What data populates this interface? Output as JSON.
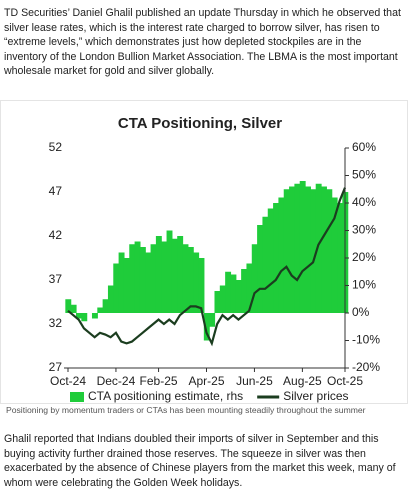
{
  "article": {
    "paragraphs": [
      "TD Securities’ Daniel Ghalil published an update Thursday in which he observed that silver lease rates, which is the interest rate charged to borrow silver, has risen to “extreme levels,” which demonstrates just how depleted stockpiles are in the inventory of the London Bullion Market Association. The LBMA is the most important wholesale market for gold and silver globally.",
      "Ghalil reported that Indians doubled their imports of silver in September and this buying activity further drained those reserves. The squeeze in silver was then exacerbated by the absence of Chinese players from the market this week, many of whom were celebrating the Golden Week holidays."
    ],
    "caption": "Positioning by momentum traders or CTAs has been mounting steadily throughout the summer"
  },
  "chart_data": {
    "type": "line",
    "title": "CTA Positioning, Silver",
    "categories": [
      "Oct-24",
      null,
      null,
      null,
      null,
      null,
      null,
      null,
      null,
      "Dec-24",
      null,
      null,
      null,
      null,
      null,
      null,
      null,
      "Feb-25",
      null,
      null,
      null,
      null,
      null,
      null,
      null,
      null,
      "Apr-25",
      null,
      null,
      null,
      null,
      null,
      null,
      null,
      null,
      "Jun-25",
      null,
      null,
      null,
      null,
      null,
      null,
      null,
      null,
      "Aug-25",
      null,
      null,
      null,
      null,
      null,
      null,
      null,
      "Oct-25"
    ],
    "series": [
      {
        "name": "Silver prices",
        "color": "#1b3d1f",
        "values": [
          33.5,
          33,
          32.5,
          31.5,
          31,
          30.5,
          31,
          30.8,
          30.5,
          31,
          30,
          29.8,
          30,
          30.5,
          31,
          31.5,
          32,
          32.5,
          32,
          32.5,
          32,
          33,
          33.5,
          34,
          34,
          33.8,
          31,
          29.8,
          32,
          33,
          32.5,
          33,
          32.5,
          33,
          33.5,
          35.5,
          36,
          36,
          36.5,
          37,
          38,
          38.5,
          37.5,
          37,
          38,
          38.5,
          39,
          41,
          42,
          43,
          44,
          46,
          47.5
        ]
      },
      {
        "name": "CTA positioning estimate, rhs",
        "color": "#1fcc3a",
        "axis": "y2",
        "values": [
          5,
          3,
          -2,
          -3,
          0,
          -2,
          2,
          5,
          10,
          18,
          22,
          20,
          25,
          26,
          24,
          22,
          25,
          28,
          26,
          30,
          27,
          28,
          25,
          24,
          22,
          20,
          -10,
          -5,
          8,
          10,
          15,
          14,
          12,
          16,
          18,
          25,
          32,
          35,
          38,
          40,
          42,
          45,
          46,
          47,
          48,
          46,
          45,
          47,
          46,
          45,
          42,
          40,
          44
        ]
      }
    ],
    "ylim": [
      27,
      52
    ],
    "yticks": [
      27,
      32,
      37,
      42,
      47,
      52
    ],
    "y2lim": [
      -20,
      60
    ],
    "y2ticks": [
      {
        "value": -20,
        "label": "-20%"
      },
      {
        "value": -10,
        "label": "-10%"
      },
      {
        "value": 0,
        "label": "0%"
      },
      {
        "value": 10,
        "label": "10%"
      },
      {
        "value": 20,
        "label": "20%"
      },
      {
        "value": 30,
        "label": "30%"
      },
      {
        "value": 40,
        "label": "40%"
      },
      {
        "value": 50,
        "label": "50%"
      },
      {
        "value": 60,
        "label": "60%"
      }
    ]
  }
}
